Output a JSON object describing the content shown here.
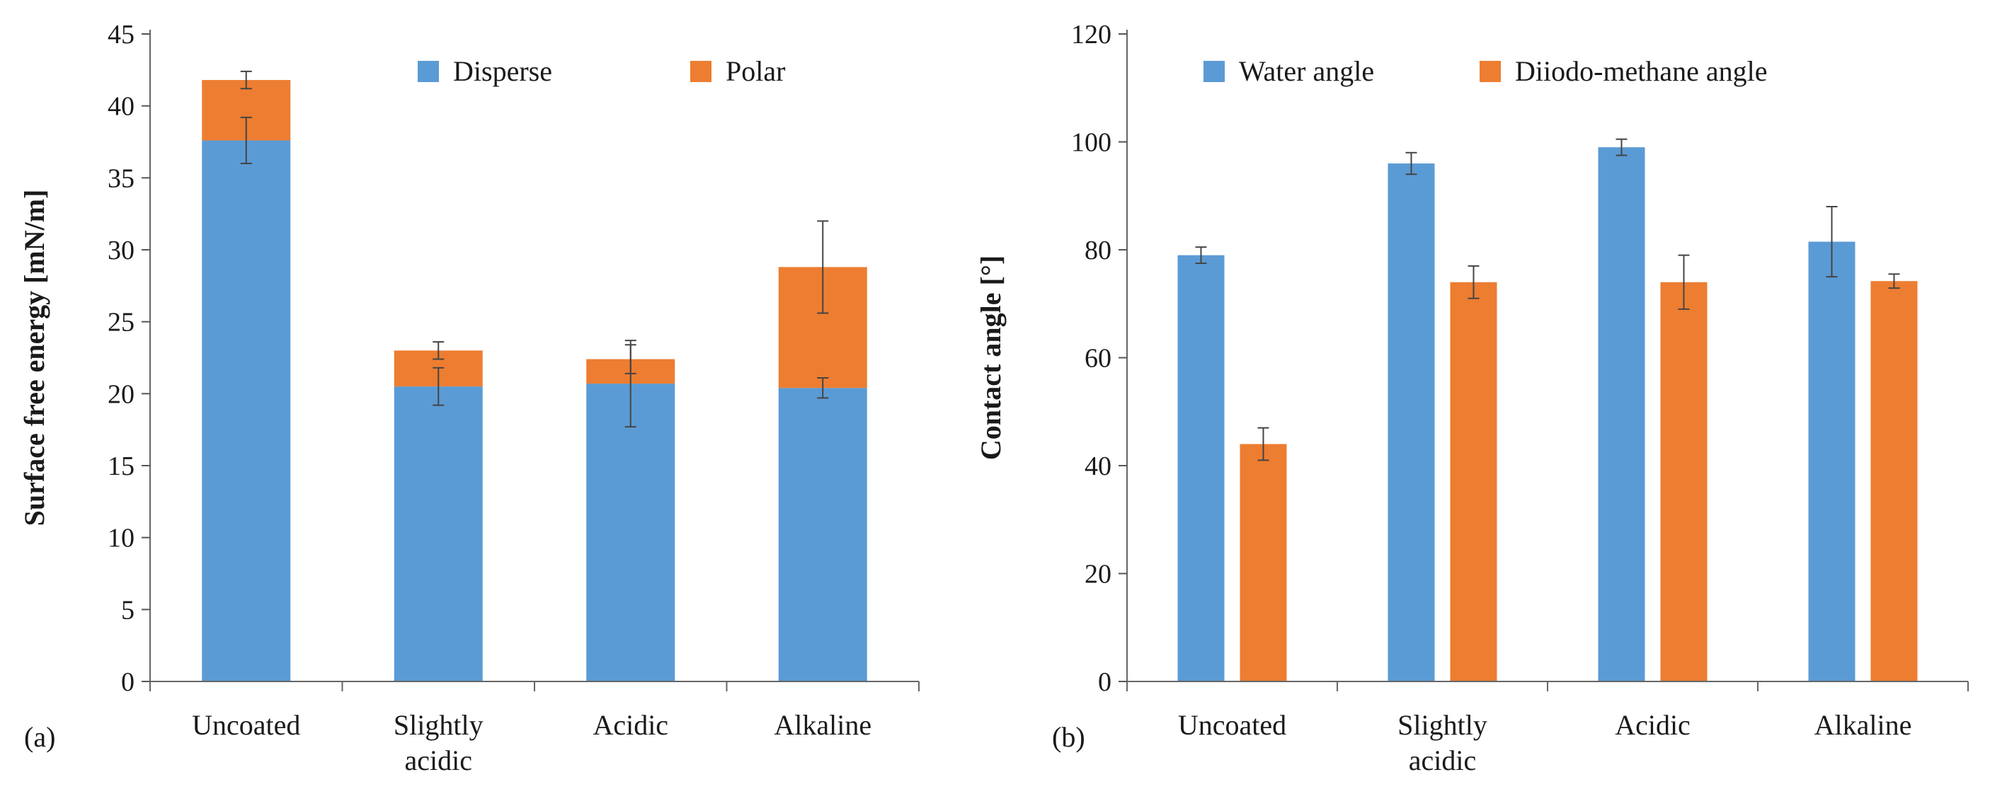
{
  "chart_data": [
    {
      "type": "bar",
      "stacked": true,
      "panel_label": "(a)",
      "ylabel": "Surface free energy [mN/m]",
      "xlabel": "",
      "ylim": [
        0,
        45
      ],
      "yticks": [
        0,
        5,
        10,
        15,
        20,
        25,
        30,
        35,
        40,
        45
      ],
      "categories": [
        "Uncoated",
        "Slightly acidic",
        "Acidic",
        "Alkaline"
      ],
      "category_lines": [
        [
          "Uncoated"
        ],
        [
          "Slightly",
          "acidic"
        ],
        [
          "Acidic"
        ],
        [
          "Alkaline"
        ]
      ],
      "series": [
        {
          "name": "Disperse",
          "color": "#5b9bd5",
          "values": [
            37.6,
            20.5,
            20.7,
            20.4
          ],
          "errors": [
            1.6,
            1.3,
            3.0,
            0.7
          ]
        },
        {
          "name": "Polar",
          "color": "#ed7d31",
          "values": [
            4.2,
            2.5,
            1.7,
            8.4
          ],
          "errors": [
            0.6,
            0.6,
            1.0,
            3.2
          ]
        }
      ],
      "legend": [
        "Disperse",
        "Polar"
      ],
      "legend_position": "top-right"
    },
    {
      "type": "bar",
      "stacked": false,
      "panel_label": "(b)",
      "ylabel": "Contact angle [°]",
      "xlabel": "",
      "ylim": [
        0,
        120
      ],
      "yticks": [
        0,
        20,
        40,
        60,
        80,
        100,
        120
      ],
      "categories": [
        "Uncoated",
        "Slightly acidic",
        "Acidic",
        "Alkaline"
      ],
      "category_lines": [
        [
          "Uncoated"
        ],
        [
          "Slightly",
          "acidic"
        ],
        [
          "Acidic"
        ],
        [
          "Alkaline"
        ]
      ],
      "series": [
        {
          "name": "Water angle",
          "color": "#5b9bd5",
          "values": [
            79,
            96,
            99,
            81.5
          ],
          "errors": [
            1.5,
            2.0,
            1.5,
            6.5
          ]
        },
        {
          "name": "Diiodo-methane angle",
          "color": "#ed7d31",
          "values": [
            44,
            74,
            74,
            74.2
          ],
          "errors": [
            3.0,
            3.0,
            5.0,
            1.3
          ]
        }
      ],
      "legend": [
        "Water angle",
        "Diiodo-methane angle"
      ],
      "legend_position": "top"
    }
  ]
}
